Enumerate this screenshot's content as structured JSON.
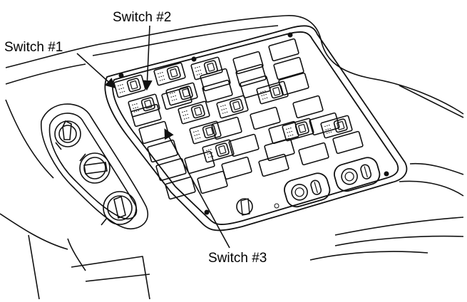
{
  "callouts": {
    "switch1": "Switch #1",
    "switch2": "Switch #2",
    "switch3": "Switch #3"
  },
  "colors": {
    "ink": "#111111",
    "background": "#ffffff"
  },
  "panel": {
    "blank_switch_count": 29,
    "labeled_rocker_switch_count": 16,
    "rotary_knob_count": 3,
    "twin_control_module_count": 2
  }
}
